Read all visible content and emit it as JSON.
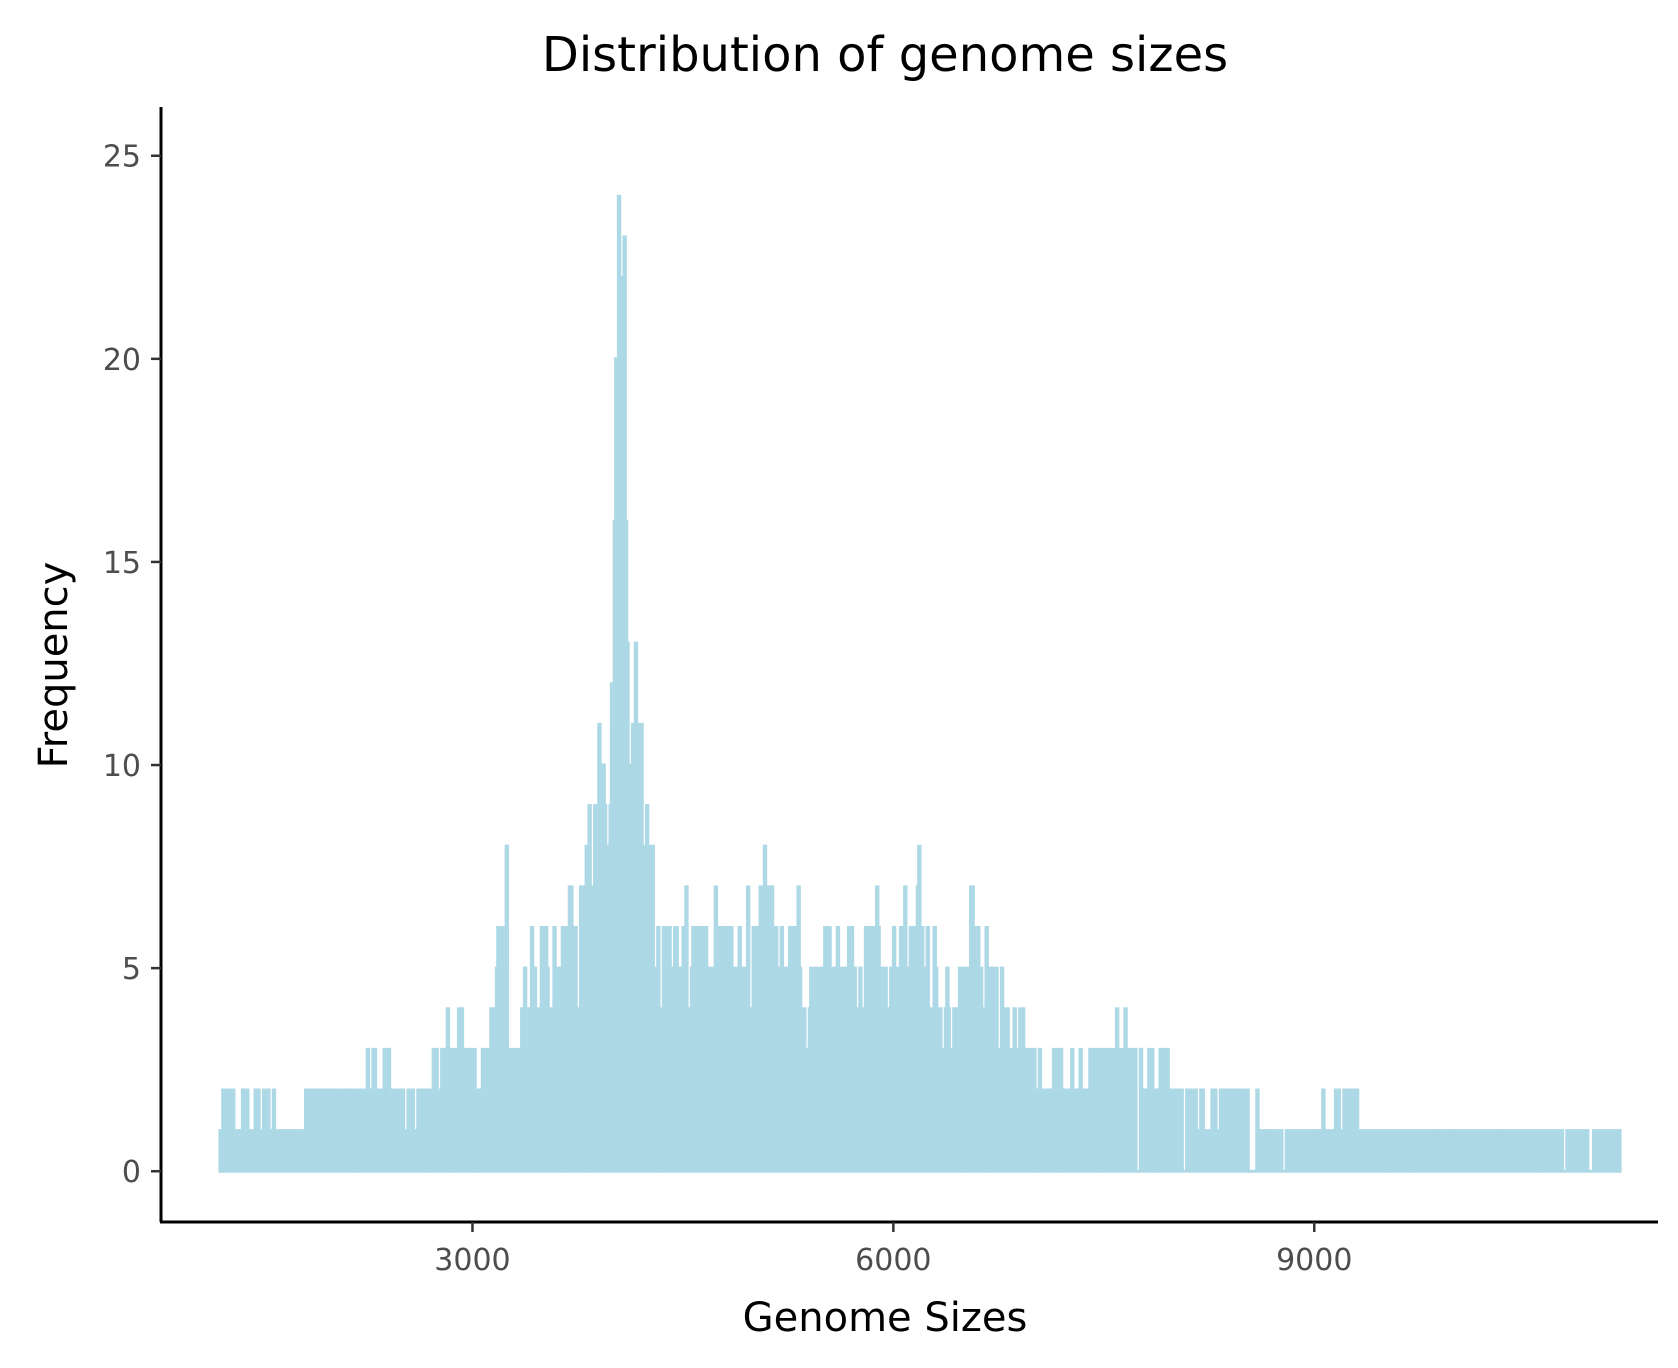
{
  "chart_data": {
    "type": "bar",
    "title": "Distribution of genome sizes",
    "xlabel": "Genome Sizes",
    "ylabel": "Frequency",
    "xlim": [
      780,
      11450
    ],
    "ylim": [
      -1.25,
      26.2
    ],
    "xticks": [
      3000,
      6000,
      9000
    ],
    "xtick_labels": [
      "3000",
      "6000",
      "9000"
    ],
    "yticks": [
      0,
      5,
      10,
      15,
      20,
      25
    ],
    "ytick_labels": [
      "0",
      "5",
      "10",
      "15",
      "20",
      "25"
    ],
    "bin_start": 1200,
    "bin_width": 10,
    "bar_color": "#add8e6",
    "axis_color": "#000000",
    "peaks": [
      {
        "x": 1230,
        "y": 2
      },
      {
        "x": 1360,
        "y": 2
      },
      {
        "x": 1470,
        "y": 2
      },
      {
        "x": 1540,
        "y": 2
      },
      {
        "x": 1650,
        "y": 1
      },
      {
        "x": 1890,
        "y": 2
      },
      {
        "x": 2100,
        "y": 2
      },
      {
        "x": 2250,
        "y": 3
      },
      {
        "x": 2400,
        "y": 3
      },
      {
        "x": 2500,
        "y": 2
      },
      {
        "x": 2610,
        "y": 2
      },
      {
        "x": 2720,
        "y": 3
      },
      {
        "x": 2820,
        "y": 4
      },
      {
        "x": 2900,
        "y": 4
      },
      {
        "x": 3070,
        "y": 3
      },
      {
        "x": 3130,
        "y": 4
      },
      {
        "x": 3240,
        "y": 8
      },
      {
        "x": 3290,
        "y": 3
      },
      {
        "x": 3420,
        "y": 6
      },
      {
        "x": 3520,
        "y": 6
      },
      {
        "x": 3640,
        "y": 6
      },
      {
        "x": 3700,
        "y": 7
      },
      {
        "x": 3780,
        "y": 7
      },
      {
        "x": 3830,
        "y": 9
      },
      {
        "x": 3900,
        "y": 11
      },
      {
        "x": 3930,
        "y": 10
      },
      {
        "x": 3990,
        "y": 12
      },
      {
        "x": 4020,
        "y": 20
      },
      {
        "x": 4040,
        "y": 24
      },
      {
        "x": 4060,
        "y": 22
      },
      {
        "x": 4080,
        "y": 23
      },
      {
        "x": 4110,
        "y": 10
      },
      {
        "x": 4140,
        "y": 11
      },
      {
        "x": 4160,
        "y": 13
      },
      {
        "x": 4200,
        "y": 11
      },
      {
        "x": 4240,
        "y": 9
      },
      {
        "x": 4280,
        "y": 8
      },
      {
        "x": 4370,
        "y": 6
      },
      {
        "x": 4450,
        "y": 6
      },
      {
        "x": 4520,
        "y": 7
      },
      {
        "x": 4620,
        "y": 6
      },
      {
        "x": 4730,
        "y": 7
      },
      {
        "x": 4840,
        "y": 6
      },
      {
        "x": 4960,
        "y": 7
      },
      {
        "x": 5080,
        "y": 8
      },
      {
        "x": 5200,
        "y": 6
      },
      {
        "x": 5320,
        "y": 7
      },
      {
        "x": 5450,
        "y": 5
      },
      {
        "x": 5540,
        "y": 6
      },
      {
        "x": 5680,
        "y": 6
      },
      {
        "x": 5800,
        "y": 6
      },
      {
        "x": 5880,
        "y": 7
      },
      {
        "x": 6000,
        "y": 6
      },
      {
        "x": 6080,
        "y": 7
      },
      {
        "x": 6140,
        "y": 6
      },
      {
        "x": 6180,
        "y": 8
      },
      {
        "x": 6240,
        "y": 6
      },
      {
        "x": 6380,
        "y": 5
      },
      {
        "x": 6450,
        "y": 4
      },
      {
        "x": 6550,
        "y": 7
      },
      {
        "x": 6660,
        "y": 6
      },
      {
        "x": 6770,
        "y": 5
      },
      {
        "x": 6900,
        "y": 4
      },
      {
        "x": 7000,
        "y": 3
      },
      {
        "x": 7150,
        "y": 3
      },
      {
        "x": 7330,
        "y": 3
      },
      {
        "x": 7650,
        "y": 4
      },
      {
        "x": 7820,
        "y": 3
      },
      {
        "x": 7900,
        "y": 3
      },
      {
        "x": 8150,
        "y": 2
      },
      {
        "x": 8510,
        "y": 2
      },
      {
        "x": 8800,
        "y": 1
      },
      {
        "x": 9240,
        "y": 2
      },
      {
        "x": 9500,
        "y": 1
      },
      {
        "x": 9850,
        "y": 1
      },
      {
        "x": 10150,
        "y": 1
      },
      {
        "x": 10510,
        "y": 1
      },
      {
        "x": 10730,
        "y": 1
      },
      {
        "x": 10760,
        "y": 1
      },
      {
        "x": 11030,
        "y": 1
      },
      {
        "x": 11100,
        "y": 1
      },
      {
        "x": 11170,
        "y": 1
      }
    ]
  }
}
